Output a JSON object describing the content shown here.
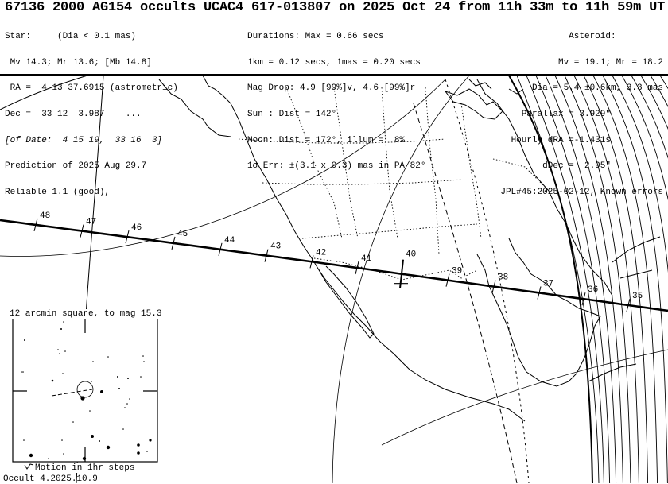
{
  "header": {
    "title": "67136 2000 AG154 occults UCAC4 617-013807 on 2025 Oct 24 from 11h 33m to 11h 59m UT",
    "star": [
      "Star:     (Dia < 0.1 mas)",
      " Mv 14.3; Mr 13.6; [Mb 14.8]",
      " RA =  4 13 37.6915 (astrometric)",
      "Dec =  33 12  3.987    ...",
      "[of Date:  4 15 19,  33 16  3]",
      "Prediction of 2025 Aug 29.7",
      "Reliable 1.1 (good),"
    ],
    "durations": [
      "Durations: Max = 0.66 secs",
      "1km = 0.12 secs, 1mas = 0.20 secs",
      "Mag Drop: 4.9 [99%]v, 4.6 [99%]r",
      "Sun : Dist = 142°",
      "Moon: Dist = 172°, illum =  8%",
      "1σ Err: ±(3.1 x 0.3) mas in PA 82°"
    ],
    "asteroid": [
      "Asteroid:         ",
      "Mv = 19.1; Mr = 18.2",
      "Dia = 5.4 ±0.6km, 3.3 mas",
      "Parallax = 3.929\"          ",
      "Hourly dRA =-1.431s          ",
      "dDec =  2.95\"          ",
      "JPL#45:2025-02-12, Known errors"
    ]
  },
  "path": {
    "time_labels": [
      "48",
      "47",
      "46",
      "45",
      "44",
      "43",
      "42",
      "41",
      "40",
      "39",
      "38",
      "37",
      "36",
      "35"
    ],
    "central_time_label": "40"
  },
  "finder": {
    "title": "12 arcmin square, to mag 15.3",
    "motion_label": "Motion in 1hr steps"
  },
  "footer": {
    "version": "Occult 4.2025.10.9"
  },
  "colors": {
    "ink": "#000000",
    "background": "#ffffff"
  }
}
